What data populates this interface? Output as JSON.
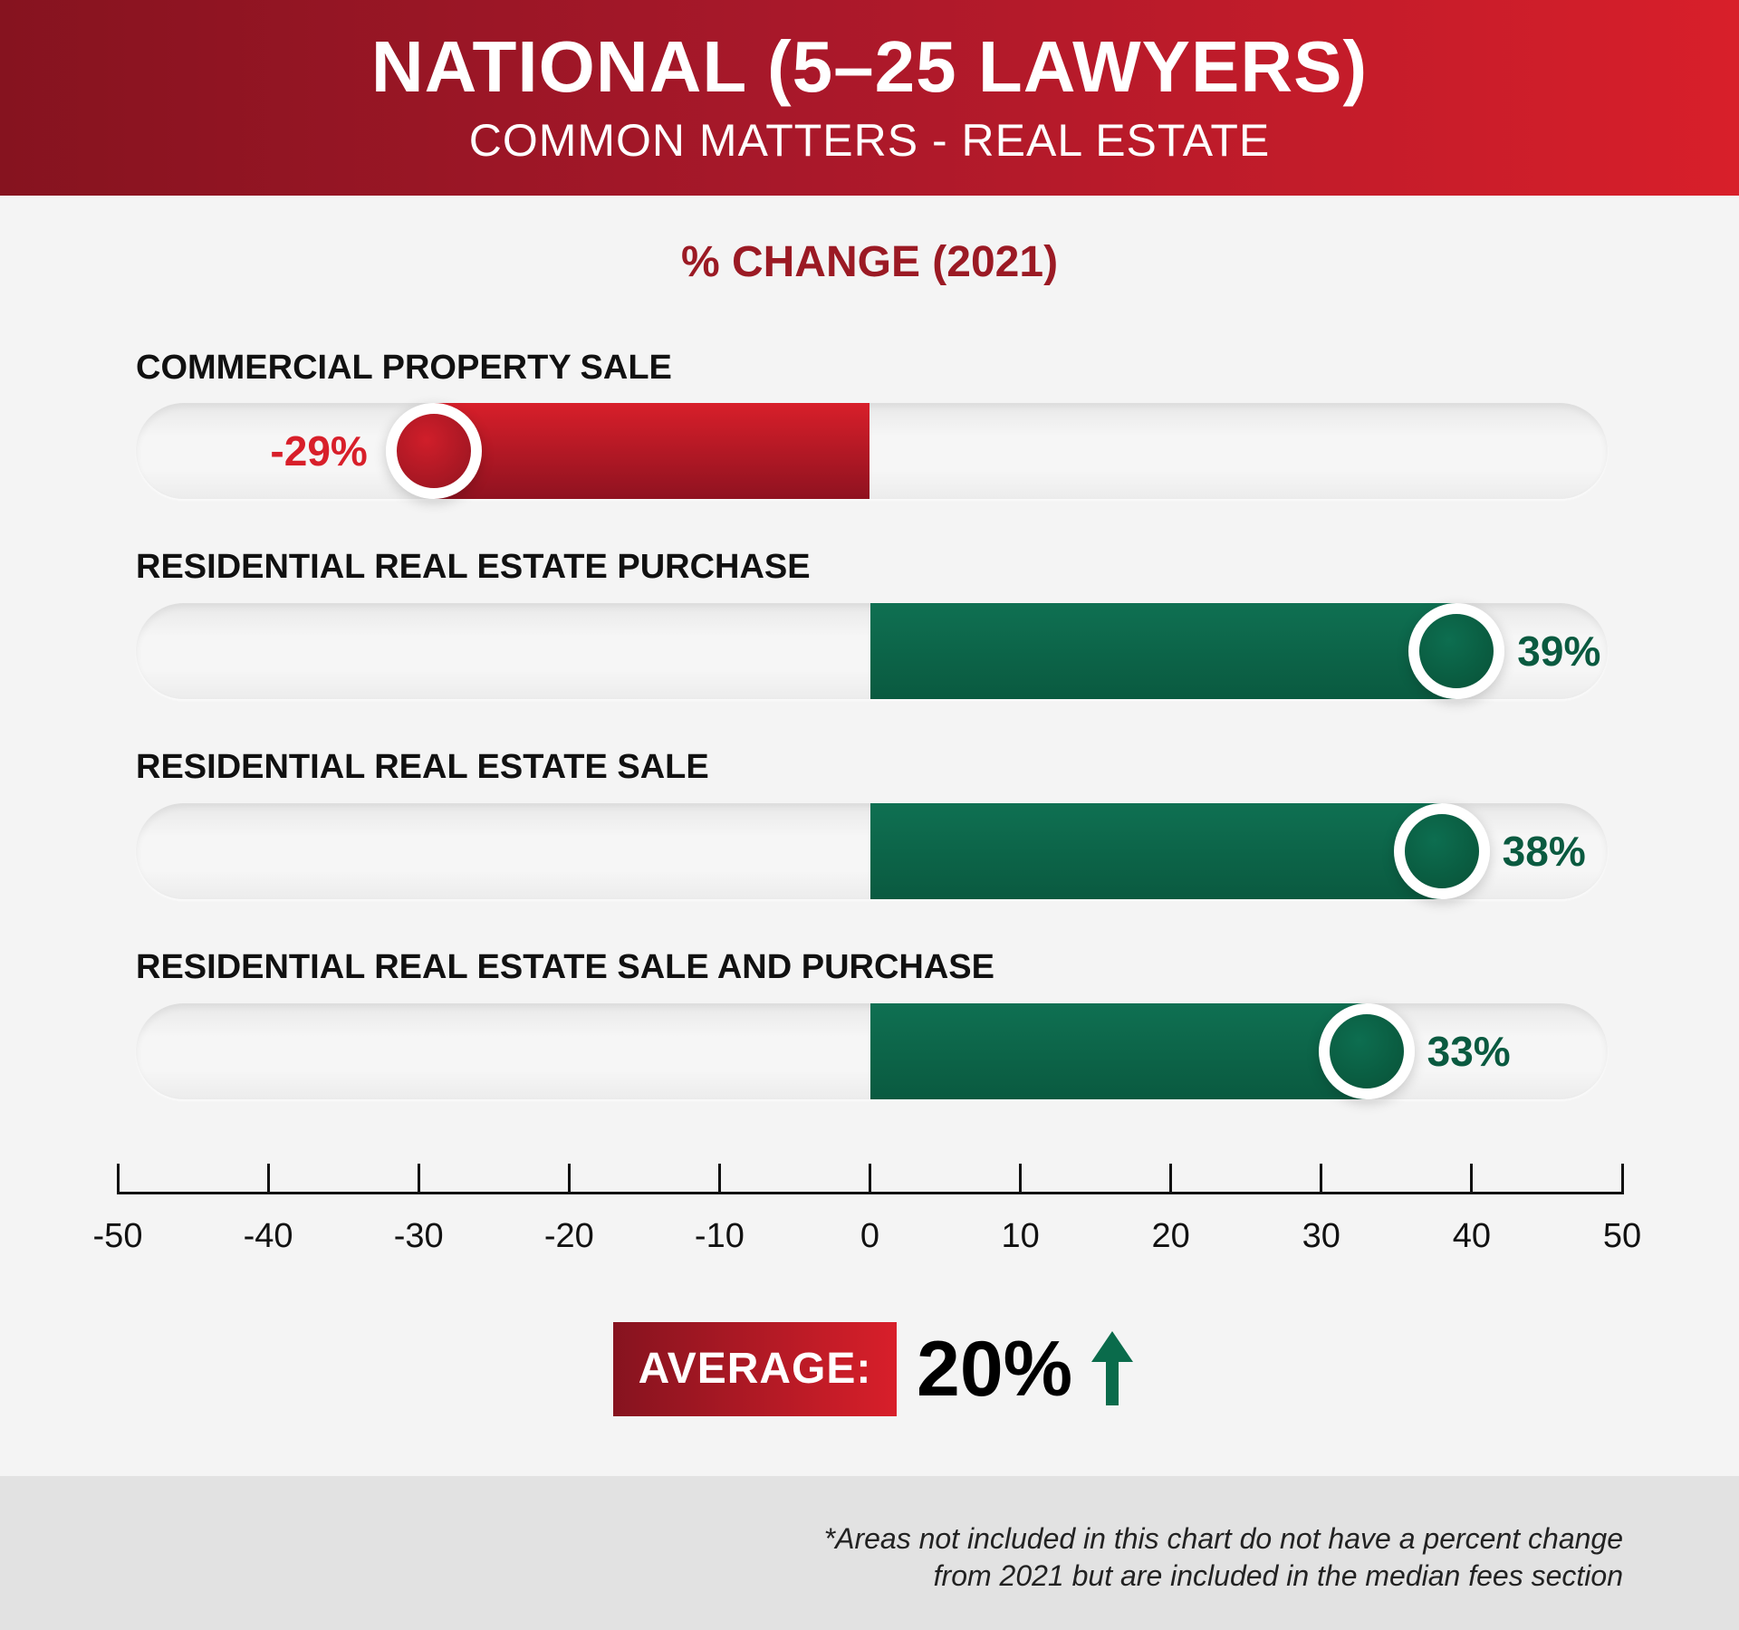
{
  "header": {
    "title": "NATIONAL (5–25 LAWYERS)",
    "subtitle": "COMMON MATTERS - REAL ESTATE"
  },
  "chart_data": {
    "type": "bar",
    "orientation": "horizontal",
    "title": "% CHANGE (2021)",
    "categories": [
      "COMMERCIAL PROPERTY SALE",
      "RESIDENTIAL REAL ESTATE PURCHASE",
      "RESIDENTIAL REAL ESTATE SALE",
      "RESIDENTIAL REAL ESTATE SALE AND PURCHASE"
    ],
    "values": [
      -29,
      39,
      38,
      33
    ],
    "value_labels": [
      "-29%",
      "39%",
      "38%",
      "33%"
    ],
    "xlim": [
      -50,
      50
    ],
    "xticks": [
      "-50",
      "-40",
      "-30",
      "-20",
      "-10",
      "0",
      "10",
      "20",
      "30",
      "40",
      "50"
    ],
    "colors": {
      "negative": "#d81f2a",
      "positive": "#0a5a40"
    },
    "grid": false
  },
  "average": {
    "label": "AVERAGE:",
    "value": "20%",
    "direction": "up",
    "icon": "up-arrow-icon",
    "color": "#0a6b4b"
  },
  "footnote": {
    "line1": "*Areas not included in this chart do not have a percent change",
    "line2": "from 2021 but are included in the median fees section"
  }
}
